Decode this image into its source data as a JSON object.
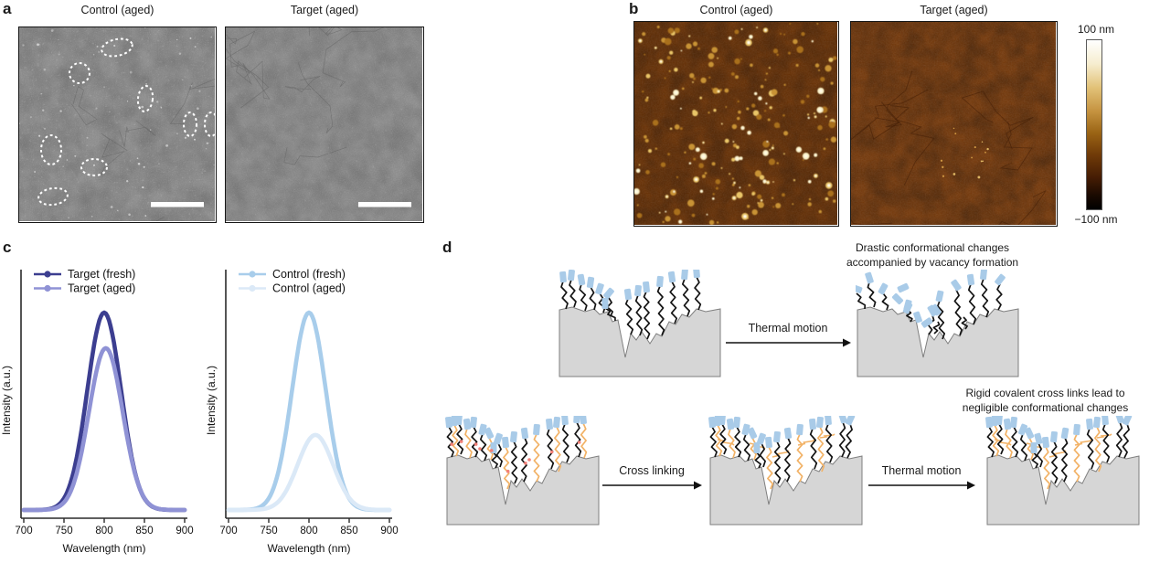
{
  "figure_labels": {
    "a": "a",
    "b": "b",
    "c": "c",
    "d": "d"
  },
  "panel_a": {
    "images": [
      {
        "title": "Control (aged)",
        "type": "SEM",
        "annotation": "dashed-ellipse-highlights",
        "has_scale_bar": true
      },
      {
        "title": "Target (aged)",
        "type": "SEM",
        "annotation": "none",
        "has_scale_bar": true
      }
    ]
  },
  "panel_b": {
    "images": [
      {
        "title": "Control (aged)",
        "type": "AFM",
        "appearance": "many bright particles"
      },
      {
        "title": "Target (aged)",
        "type": "AFM",
        "appearance": "smooth uniform film"
      }
    ],
    "colorbar": {
      "max_label": "100 nm",
      "min_label": "−100 nm"
    }
  },
  "panel_c": {
    "xlabel": "Wavelength (nm)",
    "ylabel": "Intensity (a.u.)"
  },
  "panel_d": {
    "caption_top_line1": "Drastic conformational changes",
    "caption_top_line2": "accompanied by vacancy formation",
    "caption_bottom_line1": "Rigid covalent cross links lead to",
    "caption_bottom_line2": "negligible conformational changes",
    "arrow1_label": "Thermal motion",
    "arrow2_label": "Cross linking",
    "arrow3_label": "Thermal motion"
  },
  "chart_data": [
    {
      "type": "line",
      "title": "",
      "xlabel": "Wavelength (nm)",
      "ylabel": "Intensity (a.u.)",
      "xlim": [
        700,
        900
      ],
      "ylim": [
        0,
        1.1
      ],
      "xticks": [
        700,
        750,
        800,
        850,
        900
      ],
      "grid": false,
      "legend_position": "top-left",
      "x_values": [
        700,
        710,
        720,
        730,
        740,
        750,
        760,
        770,
        780,
        790,
        800,
        810,
        820,
        830,
        840,
        850,
        860,
        870,
        880,
        890,
        900
      ],
      "series": [
        {
          "name": "Target (fresh)",
          "color": "#3c3e90",
          "peak_center_nm": 800,
          "peak_amplitude": 1.0,
          "sigma_nm": 21,
          "values": [
            0,
            0,
            0.001,
            0.004,
            0.017,
            0.059,
            0.163,
            0.36,
            0.635,
            0.893,
            1.0,
            0.893,
            0.635,
            0.36,
            0.163,
            0.059,
            0.017,
            0.004,
            0.001,
            0,
            0
          ]
        },
        {
          "name": "Target (aged)",
          "color": "#8f92d5",
          "peak_center_nm": 802,
          "peak_amplitude": 0.82,
          "sigma_nm": 21,
          "values": [
            0,
            0,
            0,
            0.002,
            0.01,
            0.038,
            0.111,
            0.257,
            0.474,
            0.696,
            0.816,
            0.763,
            0.568,
            0.337,
            0.16,
            0.06,
            0.018,
            0.004,
            0.001,
            0,
            0
          ]
        }
      ]
    },
    {
      "type": "line",
      "title": "",
      "xlabel": "Wavelength (nm)",
      "ylabel": "Intensity (a.u.)",
      "xlim": [
        700,
        900
      ],
      "ylim": [
        0,
        1.1
      ],
      "xticks": [
        700,
        750,
        800,
        850,
        900
      ],
      "grid": false,
      "legend_position": "top-left",
      "x_values": [
        700,
        710,
        720,
        730,
        740,
        750,
        760,
        770,
        780,
        790,
        800,
        810,
        820,
        830,
        840,
        850,
        860,
        870,
        880,
        890,
        900
      ],
      "series": [
        {
          "name": "Control (fresh)",
          "color": "#a8cdeb",
          "peak_center_nm": 800,
          "peak_amplitude": 1.0,
          "sigma_nm": 21,
          "values": [
            0,
            0,
            0.001,
            0.004,
            0.017,
            0.059,
            0.163,
            0.36,
            0.635,
            0.893,
            1.0,
            0.893,
            0.635,
            0.36,
            0.163,
            0.059,
            0.017,
            0.004,
            0.001,
            0,
            0
          ]
        },
        {
          "name": "Control (aged)",
          "color": "#dbe9f7",
          "peak_center_nm": 808,
          "peak_amplitude": 0.38,
          "sigma_nm": 22,
          "values": [
            0,
            0,
            0,
            0.001,
            0.003,
            0.012,
            0.035,
            0.085,
            0.169,
            0.272,
            0.356,
            0.378,
            0.328,
            0.231,
            0.132,
            0.061,
            0.023,
            0.007,
            0.002,
            0,
            0
          ]
        }
      ]
    }
  ],
  "colors": {
    "sem_base": "#8b8b8b",
    "afm_base": "#6e3407",
    "molecule_head_blue": "#a9cbe8",
    "surface_gray": "#d6d6d6",
    "chain_black": "#141414",
    "crosslink_orange": "#f2b266",
    "anchor_red": "#f28078",
    "annotation_white": "#ffffff"
  }
}
